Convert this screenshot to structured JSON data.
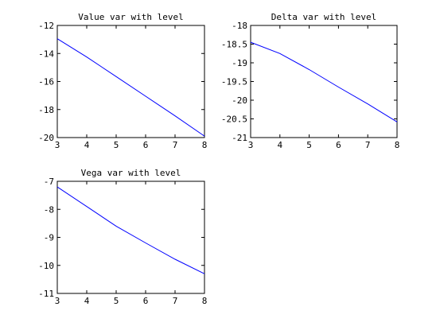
{
  "chart_data": [
    {
      "type": "line",
      "title": "Value var with level",
      "x": [
        3,
        4,
        5,
        6,
        7,
        8
      ],
      "xticks": [
        "3",
        "4",
        "5",
        "6",
        "7",
        "8"
      ],
      "xlim": [
        3,
        8
      ],
      "ylim": [
        -20,
        -12
      ],
      "yticks": [
        "-20",
        "-18",
        "-16",
        "-14",
        "-12"
      ],
      "yticks_values": [
        -20,
        -18,
        -16,
        -14,
        -12
      ],
      "series": [
        {
          "values": [
            -12.95,
            -14.25,
            -15.65,
            -17.05,
            -18.45,
            -19.9
          ],
          "color": "#0000ff"
        }
      ]
    },
    {
      "type": "line",
      "title": "Delta var with level",
      "x": [
        3,
        4,
        5,
        6,
        7,
        8
      ],
      "xticks": [
        "3",
        "4",
        "5",
        "6",
        "7",
        "8"
      ],
      "xlim": [
        3,
        8
      ],
      "ylim": [
        -21,
        -18
      ],
      "yticks": [
        "-21",
        "-20.5",
        "-20",
        "-19.5",
        "-19",
        "-18.5",
        "-18"
      ],
      "yticks_values": [
        -21,
        -20.5,
        -20,
        -19.5,
        -19,
        -18.5,
        -18
      ],
      "series": [
        {
          "values": [
            -18.45,
            -18.75,
            -19.18,
            -19.65,
            -20.1,
            -20.58
          ],
          "color": "#0000ff"
        }
      ]
    },
    {
      "type": "line",
      "title": "Vega var with level",
      "x": [
        3,
        4,
        5,
        6,
        7,
        8
      ],
      "xticks": [
        "3",
        "4",
        "5",
        "6",
        "7",
        "8"
      ],
      "xlim": [
        3,
        8
      ],
      "ylim": [
        -11,
        -7
      ],
      "yticks": [
        "-11",
        "-10",
        "-9",
        "-8",
        "-7"
      ],
      "yticks_values": [
        -11,
        -10,
        -9,
        -8,
        -7
      ],
      "series": [
        {
          "values": [
            -7.2,
            -7.9,
            -8.6,
            -9.2,
            -9.78,
            -10.3
          ],
          "color": "#0000ff"
        }
      ]
    }
  ]
}
